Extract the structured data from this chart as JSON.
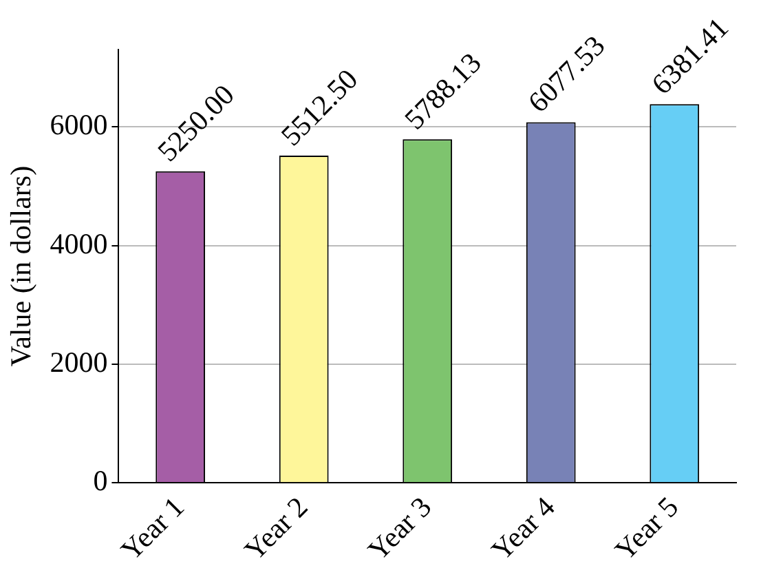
{
  "chart_data": {
    "type": "bar",
    "ylabel": "Value (in dollars)",
    "categories": [
      "Year 1",
      "Year 2",
      "Year 3",
      "Year 4",
      "Year 5"
    ],
    "values": [
      5250,
      5512.5,
      5788.13,
      6077.53,
      6381.41
    ],
    "value_labels": [
      "5250.00",
      "5512.50",
      "5788.13",
      "6077.53",
      "6381.41"
    ],
    "colors": [
      "#a55ea6",
      "#fef69a",
      "#7ec46e",
      "#7882b6",
      "#66cef5"
    ],
    "ylim": [
      0,
      7300
    ],
    "yticks": [
      0,
      2000,
      4000,
      6000
    ],
    "grid": "y",
    "legend": false
  }
}
